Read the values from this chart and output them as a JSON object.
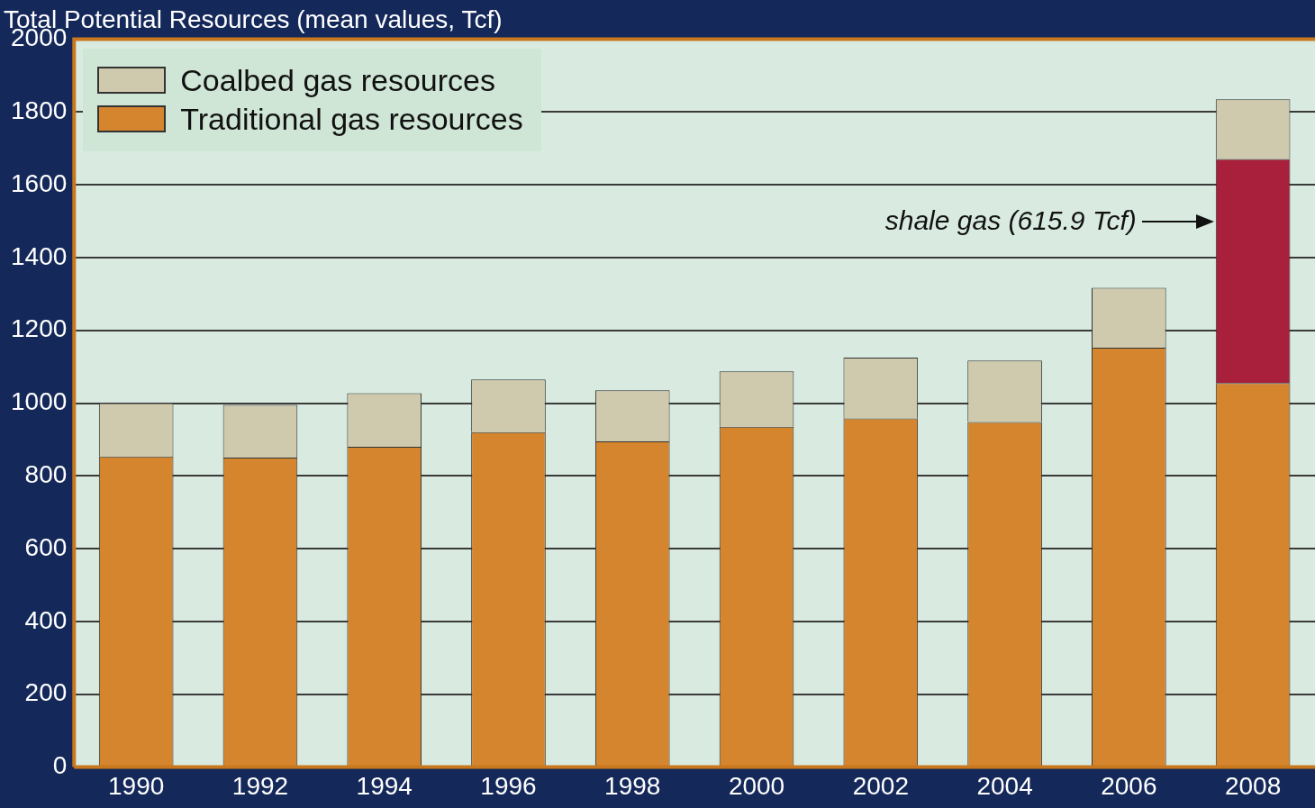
{
  "chart_data": {
    "type": "bar",
    "title": "Total Potential Resources (mean values, Tcf)",
    "categories": [
      "1990",
      "1992",
      "1994",
      "1996",
      "1998",
      "2000",
      "2002",
      "2004",
      "2006",
      "2008"
    ],
    "stacked": true,
    "series": [
      {
        "name": "Traditional gas resources",
        "color": "#d4852e",
        "values": [
          853,
          850,
          880,
          920,
          895,
          935,
          958,
          948,
          1152,
          1055
        ]
      },
      {
        "color": "#a8203c",
        "values": [
          null,
          null,
          null,
          null,
          null,
          null,
          null,
          null,
          null,
          615.9
        ]
      },
      {
        "name": "Coalbed gas resources",
        "color": "#cfc9ad",
        "values": [
          147,
          145,
          147,
          145,
          140,
          152,
          167,
          169,
          165,
          164
        ]
      }
    ],
    "ylim": [
      0,
      2000
    ],
    "yticks": [
      0,
      200,
      400,
      600,
      800,
      1000,
      1200,
      1400,
      1600,
      1800,
      2000
    ],
    "grid": "y",
    "legend": "top left",
    "annotations": [
      "shale gas (615.9 Tcf)"
    ]
  }
}
